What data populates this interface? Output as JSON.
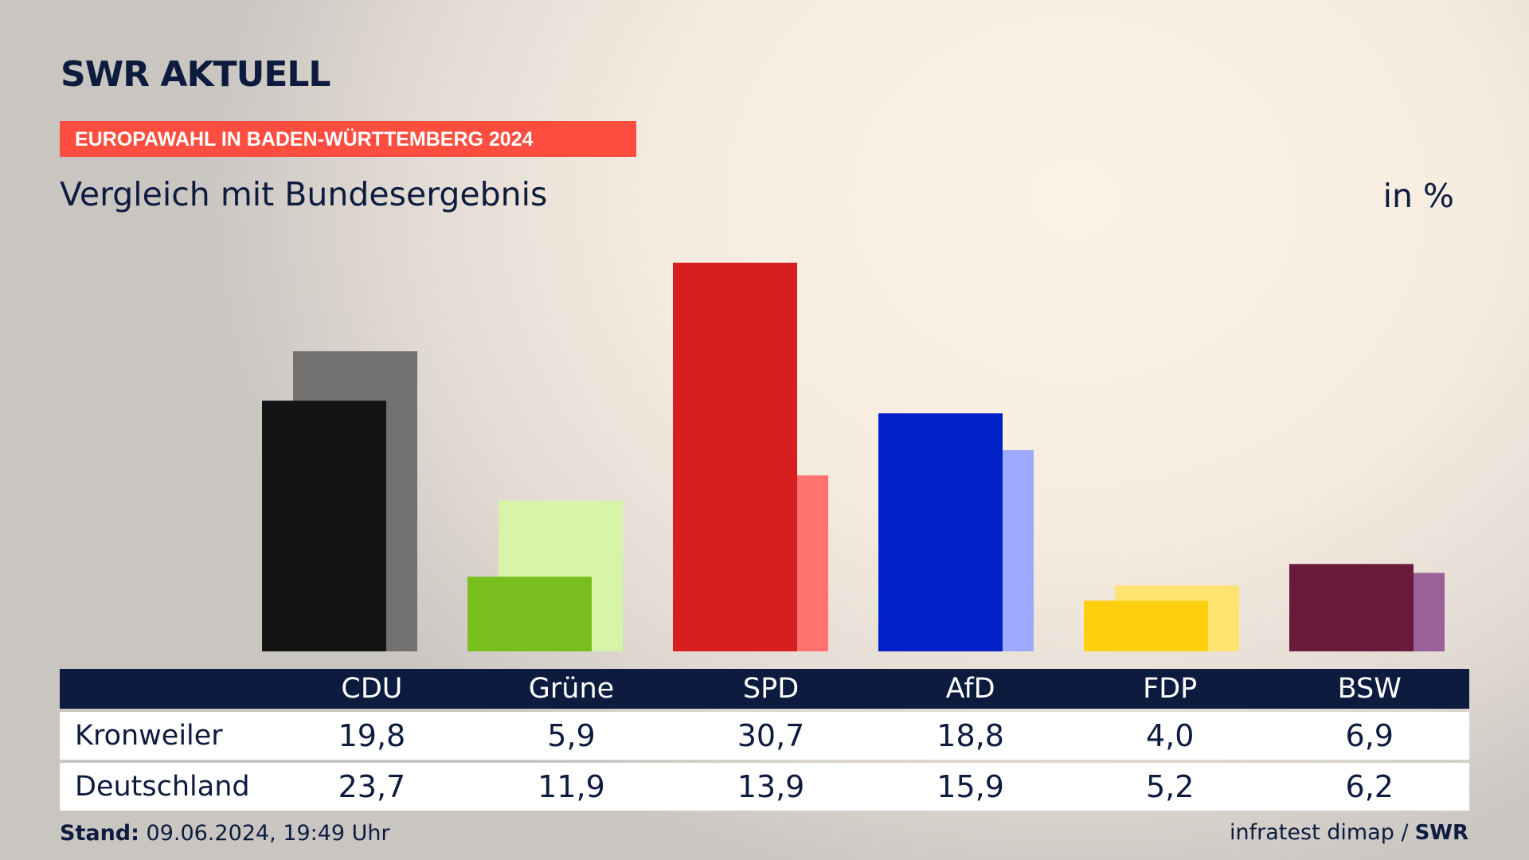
{
  "header": {
    "logo": "SWR AKTUELL",
    "kicker": "EUROPAWAHL IN BADEN-WÜRTTEMBERG 2024",
    "title": "Vergleich mit Bundesergebnis",
    "unit": "in %"
  },
  "chart_data": {
    "type": "bar",
    "categories": [
      "CDU",
      "Grüne",
      "SPD",
      "AfD",
      "FDP",
      "BSW"
    ],
    "series": [
      {
        "name": "Kronweiler",
        "values": [
          19.8,
          5.9,
          30.7,
          18.8,
          4.0,
          6.9
        ],
        "display": [
          "19,8",
          "5,9",
          "30,7",
          "18,8",
          "4,0",
          "6,9"
        ]
      },
      {
        "name": "Deutschland",
        "values": [
          23.7,
          11.9,
          13.9,
          15.9,
          5.2,
          6.2
        ],
        "display": [
          "23,7",
          "11,9",
          "13,9",
          "15,9",
          "5,2",
          "6,2"
        ]
      }
    ],
    "colors": {
      "primary": [
        "#141414",
        "#78be1e",
        "#d71f1f",
        "#0020c8",
        "#ffd00f",
        "#6b1a3c"
      ],
      "secondary": [
        "#737170",
        "#d8f4a8",
        "#ff7270",
        "#9ca9ff",
        "#ffe371",
        "#9a6198"
      ]
    },
    "ylim": [
      0,
      31
    ]
  },
  "footer": {
    "stand_label": "Stand:",
    "stand_value": "09.06.2024, 19:49 Uhr",
    "source": "infratest dimap /",
    "source_logo": "SWR"
  }
}
